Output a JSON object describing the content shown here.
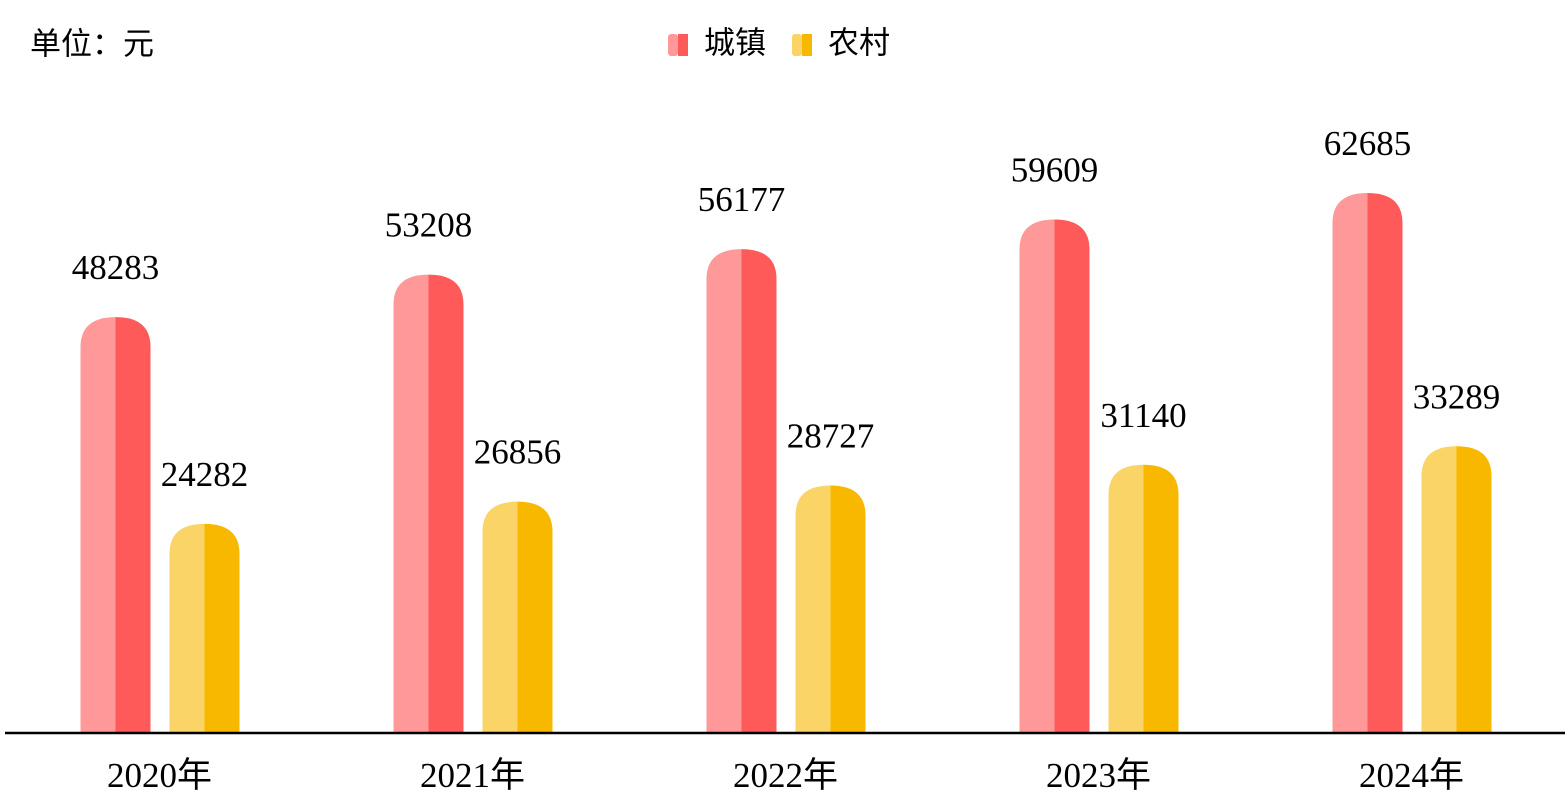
{
  "chart_data": {
    "type": "bar",
    "unit": "单位：元",
    "categories": [
      "2020年",
      "2021年",
      "2022年",
      "2023年",
      "2024年"
    ],
    "series": [
      {
        "name": "城镇",
        "color": "#ff5a5a",
        "light": "#ff9999",
        "values": [
          48283,
          53208,
          56177,
          59609,
          62685
        ]
      },
      {
        "name": "农村",
        "color": "#f9b800",
        "light": "#fad466",
        "values": [
          24282,
          26856,
          28727,
          31140,
          33289
        ]
      }
    ],
    "ylim": [
      0,
      70000
    ]
  }
}
